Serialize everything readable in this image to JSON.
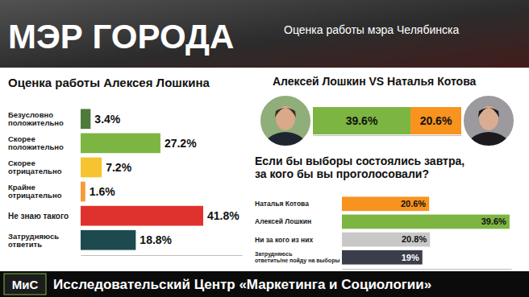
{
  "header": {
    "title": "МЭР ГОРОДА",
    "subtitle": "Оценка работы мэра Челябинска"
  },
  "chart_data": [
    {
      "type": "bar",
      "orientation": "horizontal",
      "title": "Оценка работы Алексея Лошкина",
      "categories": [
        "Безусловно положительно",
        "Скорее положительно",
        "Скорее отрицательно",
        "Крайне отрицательно",
        "Не знаю такого",
        "Затрудняюсь ответить"
      ],
      "values": [
        3.4,
        27.2,
        7.2,
        1.6,
        41.8,
        18.8
      ],
      "value_labels": [
        "3.4%",
        "27.2%",
        "7.2%",
        "1.6%",
        "41.8%",
        "18.8%"
      ],
      "colors": [
        "#4f7a3a",
        "#7cb542",
        "#f6c430",
        "#f59b3c",
        "#e0322d",
        "#1d4a4e"
      ],
      "xlim": [
        0,
        55
      ],
      "data_labels": true,
      "tick_labels": "y"
    },
    {
      "type": "bar",
      "orientation": "horizontal",
      "stacked": true,
      "title": "Алексей Лошкин VS Наталья Котова",
      "categories": [
        null
      ],
      "series": [
        {
          "color": "#7cb542",
          "values": [
            39.6
          ],
          "value_labels": [
            "39.6%"
          ]
        },
        {
          "color": "#f7931e",
          "values": [
            20.6
          ],
          "value_labels": [
            "20.6%"
          ]
        }
      ],
      "xlim": [
        0,
        60.2
      ],
      "data_labels": true,
      "tick_labels": false
    },
    {
      "type": "bar",
      "orientation": "horizontal",
      "title": "Если бы выборы состоялись завтра, за кого бы вы проголосовали?",
      "categories": [
        "Наталья Котова",
        "Алексей Лошкин",
        "Ни за кого из них",
        "Затрудняюсь ответить/не пойду на выборы"
      ],
      "values": [
        20.6,
        39.6,
        20.8,
        19
      ],
      "value_labels": [
        "20.6%",
        "39.6%",
        "20.8%",
        "19%"
      ],
      "colors": [
        "#f7931e",
        "#7cb542",
        "#c8c8c8",
        "#3b3e4a"
      ],
      "xlim": [
        0,
        40
      ],
      "data_labels": true,
      "tick_labels": "y"
    }
  ],
  "footer": {
    "logo": "МиС",
    "text": "Исследовательский Центр «Маркетинга и Социологии»"
  }
}
